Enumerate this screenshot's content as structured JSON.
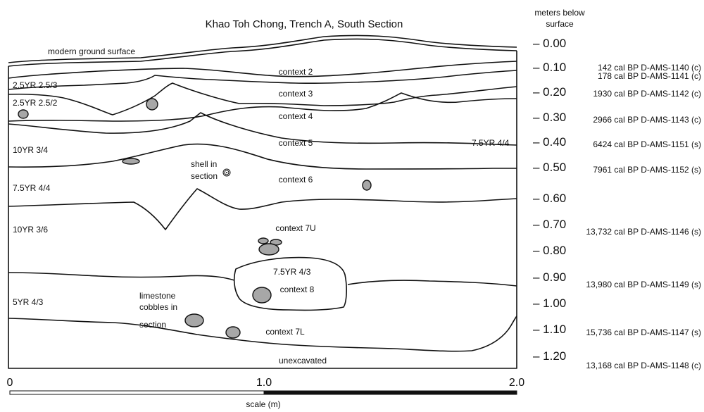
{
  "figure": {
    "title": "Khao Toh Chong, Trench A, South Section",
    "modern_surface_label": "modern ground surface",
    "depth_axis_title_1": "meters below",
    "depth_axis_title_2": "surface"
  },
  "depth_ticks": [
    "– 0.00",
    "– 0.10",
    "– 0.20",
    "– 0.30",
    "– 0.40",
    "– 0.50",
    "– 0.60",
    "– 0.70",
    "– 0.80",
    "– 0.90",
    "– 1.00",
    "– 1.10",
    "– 1.20"
  ],
  "dates": [
    "142 cal BP D-AMS-1140 (c)",
    "178 cal BP D-AMS-1141 (c)",
    "1930 cal BP D-AMS-1142 (c)",
    "2966 cal BP D-AMS-1143 (c)",
    "6424 cal BP D-AMS-1151 (s)",
    "7961 cal BP D-AMS-1152 (s)",
    "13,732 cal BP D-AMS-1146 (s)",
    "13,980 cal BP D-AMS-1149 (s)",
    "15,736 cal BP D-AMS-1147 (s)",
    "13,168 cal BP D-AMS-1148 (c)"
  ],
  "contexts": [
    "context 2",
    "context 3",
    "context 4",
    "context 5",
    "context 6",
    "context 7U",
    "context 8",
    "context 7L",
    "unexcavated"
  ],
  "soil_colors": [
    "2.5YR 2.5/3",
    "2.5YR 2.5/2",
    "10YR 3/4",
    "7.5YR 4/4",
    "10YR 3/6",
    "5YR 4/3",
    "7.5YR 4/4",
    "7.5YR 4/3"
  ],
  "annotations": {
    "shell_1": "shell in",
    "shell_2": "section",
    "limestone_1": "limestone",
    "limestone_2": "cobbles in",
    "limestone_3": "section"
  },
  "scale": {
    "ticks": [
      "0",
      "1.0",
      "2.0"
    ],
    "label": "scale (m)"
  }
}
